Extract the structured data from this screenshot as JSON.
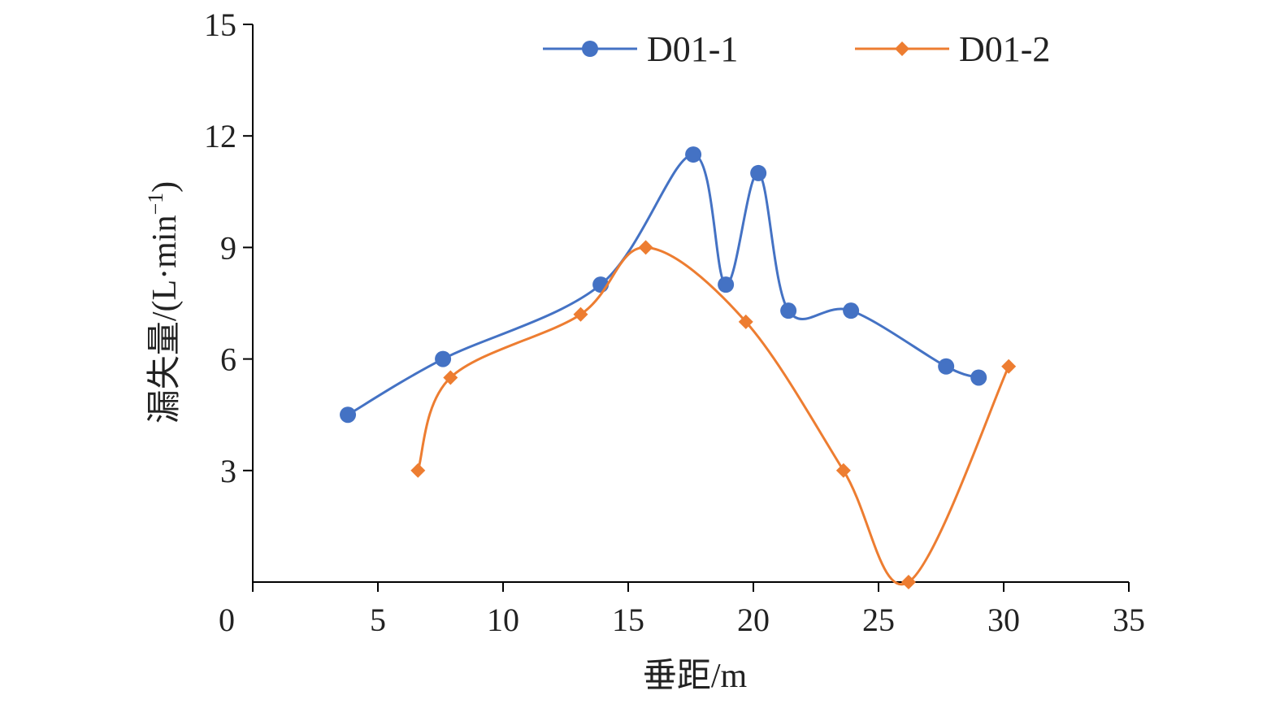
{
  "chart_data": {
    "type": "line",
    "xlabel": "垂距/m",
    "ylabel": "漏失量/(L·min",
    "ylabel_sup": "−1",
    "ylabel_close": ")",
    "xlim": [
      0,
      35
    ],
    "ylim": [
      0,
      15
    ],
    "x_ticks": [
      0,
      5,
      10,
      15,
      20,
      25,
      30,
      35
    ],
    "y_ticks": [
      3,
      6,
      9,
      12,
      15
    ],
    "grid": false,
    "legend_position": "top",
    "smooth": true,
    "series": [
      {
        "name": "D01-1",
        "color": "#4472C4",
        "marker": "circle",
        "points": [
          [
            3.8,
            4.5
          ],
          [
            7.6,
            6.0
          ],
          [
            13.9,
            8.0
          ],
          [
            17.6,
            11.5
          ],
          [
            18.9,
            8.0
          ],
          [
            20.2,
            11.0
          ],
          [
            21.4,
            7.3
          ],
          [
            23.9,
            7.3
          ],
          [
            27.7,
            5.8
          ],
          [
            29.0,
            5.5
          ]
        ]
      },
      {
        "name": "D01-2",
        "color": "#ED7D31",
        "marker": "diamond",
        "points": [
          [
            6.6,
            3.0
          ],
          [
            7.9,
            5.5
          ],
          [
            13.1,
            7.2
          ],
          [
            15.7,
            9.0
          ],
          [
            19.7,
            7.0
          ],
          [
            23.6,
            3.0
          ],
          [
            26.2,
            0.0
          ],
          [
            30.2,
            5.8
          ]
        ]
      }
    ]
  }
}
